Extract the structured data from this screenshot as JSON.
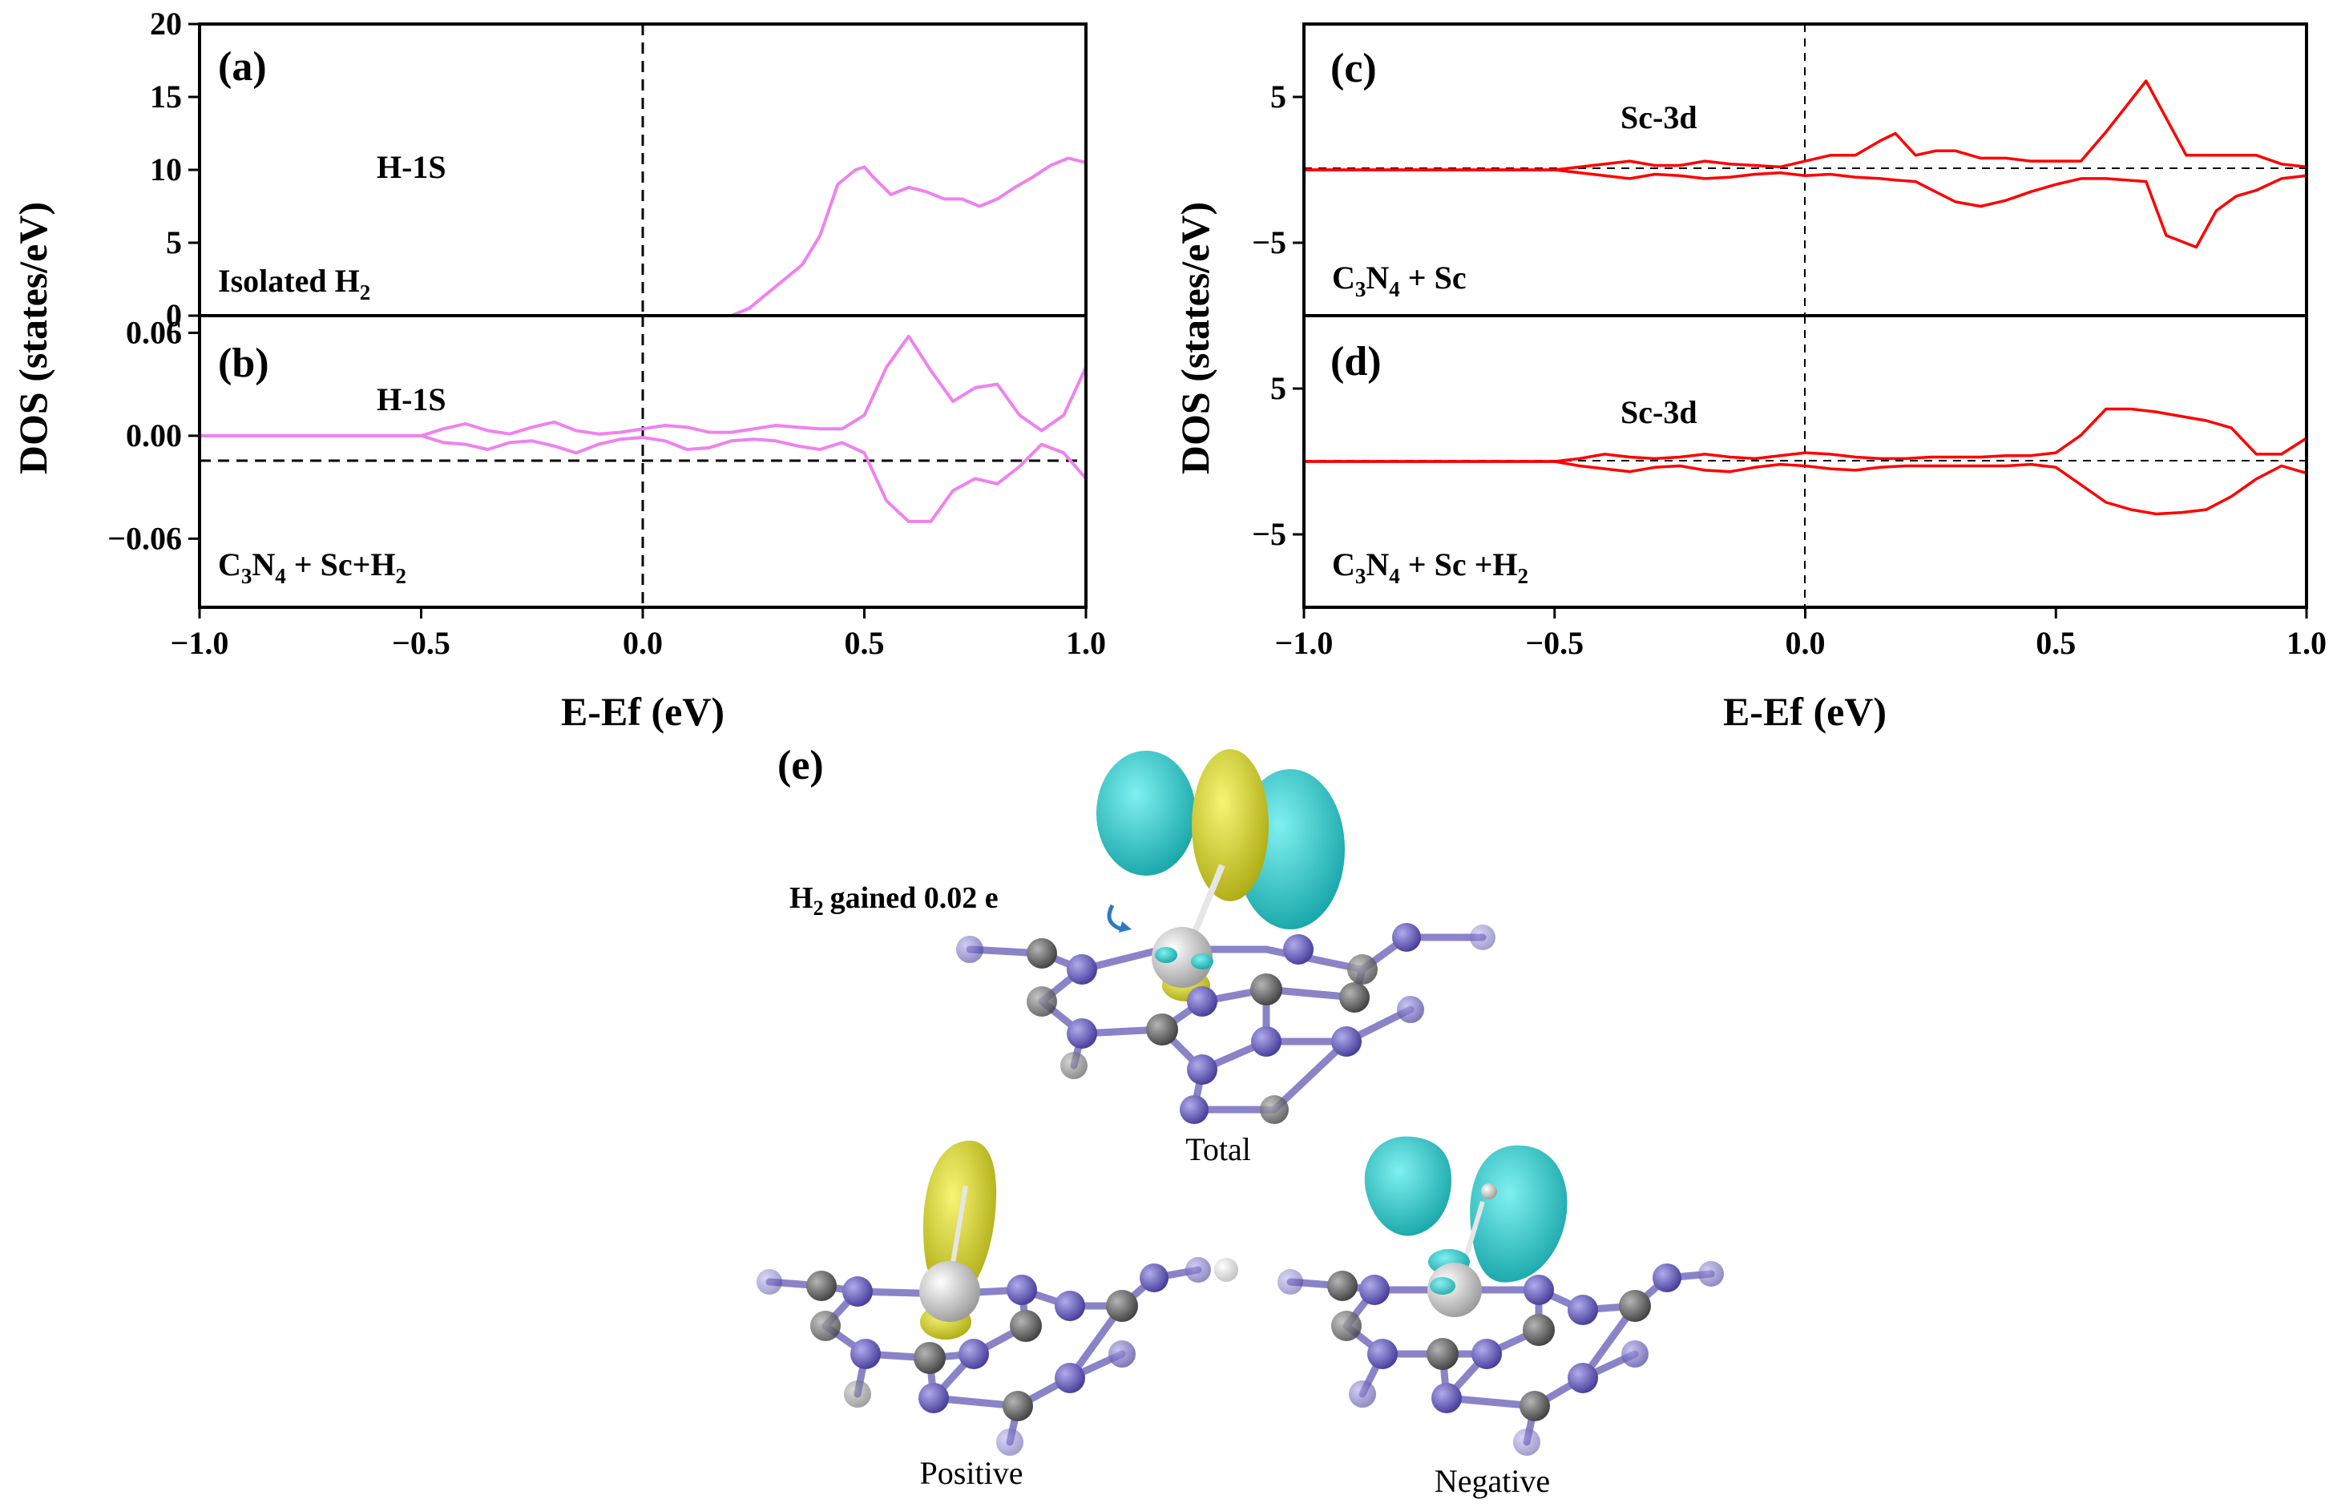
{
  "panels": {
    "e_label": "(e)",
    "charge_text": "gained 0.02 e",
    "charge_species": "H",
    "charge_sub": "2",
    "captions": [
      "Total",
      "Positive",
      "Negative"
    ]
  },
  "colors": {
    "h1s": "#ee82ee",
    "sc3d": "#ff0000",
    "isosurface_positive": "#e3e21a",
    "isosurface_negative": "#19d3d6",
    "atom_c": "#6e6e6e",
    "atom_n": "#6d63c9",
    "atom_sc": "#d8d8d8"
  },
  "chart_data": [
    {
      "id": "a",
      "type": "line",
      "panel_label": "(a)",
      "series_label": "H-1S",
      "system_label": {
        "text": "Isolated H",
        "sub": "2"
      },
      "xlim": [
        -1.0,
        1.0
      ],
      "ylim": [
        0,
        20
      ],
      "yticks": [
        0,
        5,
        10,
        15,
        20
      ],
      "ytick_labels": [
        "0",
        "5",
        "10",
        "15",
        "20"
      ],
      "vline_x": 0,
      "series": [
        {
          "x": [
            -1.0,
            0.2,
            0.24,
            0.28,
            0.32,
            0.36,
            0.4,
            0.44,
            0.48,
            0.5,
            0.52,
            0.56,
            0.6,
            0.64,
            0.68,
            0.72,
            0.76,
            0.8,
            0.84,
            0.88,
            0.92,
            0.96,
            1.0
          ],
          "y": [
            0,
            0,
            0.5,
            1.5,
            2.5,
            3.5,
            5.5,
            9.0,
            10.0,
            10.2,
            9.5,
            8.3,
            8.8,
            8.5,
            8.0,
            8.0,
            7.5,
            8.0,
            8.8,
            9.5,
            10.3,
            10.8,
            10.5
          ]
        }
      ]
    },
    {
      "id": "b",
      "type": "line",
      "panel_label": "(b)",
      "series_label": "H-1S",
      "system_label": {
        "parts": [
          [
            "C",
            ""
          ],
          [
            "3",
            "sub"
          ],
          [
            "N",
            ""
          ],
          [
            "4",
            "sub"
          ],
          [
            " + Sc+H",
            ""
          ],
          [
            "2",
            "sub"
          ]
        ]
      },
      "xlim": [
        -1.0,
        1.0
      ],
      "ylim": [
        -0.1,
        0.07
      ],
      "yticks": [
        -0.06,
        0.0,
        0.06
      ],
      "ytick_labels": [
        "−0.06",
        "0.00",
        "0.06"
      ],
      "xticks": [
        -1.0,
        -0.5,
        0.0,
        0.5,
        1.0
      ],
      "xtick_labels": [
        "−1.0",
        "−0.5",
        "0.0",
        "0.5",
        "1.0"
      ],
      "xlabel": "E-Ef (eV)",
      "vline_x": 0,
      "hline_y": 0,
      "series": [
        {
          "x": [
            -1.0,
            -0.55,
            -0.5,
            -0.45,
            -0.4,
            -0.35,
            -0.3,
            -0.25,
            -0.2,
            -0.15,
            -0.1,
            -0.05,
            0.0,
            0.05,
            0.1,
            0.15,
            0.2,
            0.25,
            0.3,
            0.35,
            0.4,
            0.45,
            0.5,
            0.55,
            0.6,
            0.65,
            0.7,
            0.75,
            0.8,
            0.85,
            0.9,
            0.95,
            1.0
          ],
          "y": [
            0.0,
            0.0,
            0.0,
            0.004,
            0.007,
            0.003,
            0.001,
            0.005,
            0.008,
            0.003,
            0.001,
            0.002,
            0.004,
            0.006,
            0.005,
            0.002,
            0.002,
            0.004,
            0.006,
            0.005,
            0.004,
            0.004,
            0.012,
            0.04,
            0.058,
            0.038,
            0.02,
            0.028,
            0.03,
            0.012,
            0.003,
            0.012,
            0.04
          ]
        },
        {
          "x": [
            -1.0,
            -0.55,
            -0.5,
            -0.45,
            -0.4,
            -0.35,
            -0.3,
            -0.25,
            -0.2,
            -0.15,
            -0.1,
            -0.05,
            0.0,
            0.05,
            0.1,
            0.15,
            0.2,
            0.25,
            0.3,
            0.35,
            0.4,
            0.45,
            0.5,
            0.55,
            0.6,
            0.65,
            0.7,
            0.75,
            0.8,
            0.85,
            0.9,
            0.95,
            1.0
          ],
          "y": [
            0.0,
            0.0,
            0.0,
            -0.004,
            -0.005,
            -0.008,
            -0.004,
            -0.003,
            -0.006,
            -0.01,
            -0.005,
            -0.002,
            -0.001,
            -0.003,
            -0.008,
            -0.007,
            -0.003,
            -0.002,
            -0.003,
            -0.006,
            -0.008,
            -0.004,
            -0.01,
            -0.038,
            -0.05,
            -0.05,
            -0.032,
            -0.025,
            -0.028,
            -0.018,
            -0.005,
            -0.01,
            -0.025
          ]
        }
      ]
    },
    {
      "id": "c",
      "type": "line",
      "panel_label": "(c)",
      "series_label": "Sc-3d",
      "system_label": {
        "parts": [
          [
            "C",
            ""
          ],
          [
            "3",
            "sub"
          ],
          [
            "N",
            ""
          ],
          [
            "4",
            "sub"
          ],
          [
            " + Sc",
            ""
          ]
        ]
      },
      "xlim": [
        -1.0,
        1.0
      ],
      "ylim": [
        -10,
        10
      ],
      "yticks": [
        -5,
        5
      ],
      "ytick_labels": [
        "−5",
        "5"
      ],
      "vline_x": 0,
      "hline_y": 0,
      "series": [
        {
          "x": [
            -1.0,
            -0.55,
            -0.5,
            -0.45,
            -0.4,
            -0.35,
            -0.3,
            -0.25,
            -0.2,
            -0.15,
            -0.1,
            -0.05,
            0.0,
            0.05,
            0.1,
            0.15,
            0.18,
            0.22,
            0.26,
            0.3,
            0.35,
            0.4,
            0.45,
            0.5,
            0.55,
            0.6,
            0.68,
            0.76,
            0.8,
            0.85,
            0.9,
            0.95,
            1.0
          ],
          "y": [
            0.0,
            0.0,
            0.0,
            0.2,
            0.4,
            0.6,
            0.3,
            0.3,
            0.6,
            0.4,
            0.3,
            0.2,
            0.6,
            1.0,
            1.0,
            2.0,
            2.5,
            1.0,
            1.3,
            1.3,
            0.8,
            0.8,
            0.6,
            0.6,
            0.6,
            2.6,
            6.1,
            1.0,
            1.0,
            1.0,
            1.0,
            0.4,
            0.2
          ]
        },
        {
          "x": [
            -1.0,
            -0.55,
            -0.5,
            -0.45,
            -0.4,
            -0.35,
            -0.3,
            -0.25,
            -0.2,
            -0.15,
            -0.1,
            -0.05,
            0.0,
            0.05,
            0.1,
            0.15,
            0.18,
            0.22,
            0.26,
            0.3,
            0.35,
            0.4,
            0.45,
            0.5,
            0.55,
            0.6,
            0.68,
            0.72,
            0.78,
            0.82,
            0.86,
            0.9,
            0.95,
            1.0
          ],
          "y": [
            0.0,
            0.0,
            0.0,
            -0.2,
            -0.4,
            -0.6,
            -0.3,
            -0.4,
            -0.6,
            -0.5,
            -0.3,
            -0.2,
            -0.4,
            -0.3,
            -0.5,
            -0.6,
            -0.7,
            -0.8,
            -1.5,
            -2.2,
            -2.5,
            -2.1,
            -1.5,
            -1.0,
            -0.6,
            -0.6,
            -0.8,
            -4.5,
            -5.3,
            -2.8,
            -1.8,
            -1.4,
            -0.6,
            -0.4
          ]
        }
      ]
    },
    {
      "id": "d",
      "type": "line",
      "panel_label": "(d)",
      "series_label": "Sc-3d",
      "system_label": {
        "parts": [
          [
            "C",
            ""
          ],
          [
            "3",
            "sub"
          ],
          [
            "N",
            ""
          ],
          [
            "4",
            "sub"
          ],
          [
            " + Sc +H",
            ""
          ],
          [
            "2",
            "sub"
          ]
        ]
      },
      "xlim": [
        -1.0,
        1.0
      ],
      "ylim": [
        -10,
        10
      ],
      "yticks": [
        -5,
        5
      ],
      "ytick_labels": [
        "−5",
        "5"
      ],
      "xticks": [
        -1.0,
        -0.5,
        0.0,
        0.5,
        1.0
      ],
      "xtick_labels": [
        "−1.0",
        "−0.5",
        "0.0",
        "0.5",
        "1.0"
      ],
      "xlabel": "E-Ef (eV)",
      "vline_x": 0,
      "hline_y": 0,
      "series": [
        {
          "x": [
            -1.0,
            -0.55,
            -0.5,
            -0.45,
            -0.4,
            -0.35,
            -0.3,
            -0.25,
            -0.2,
            -0.15,
            -0.1,
            -0.05,
            0.0,
            0.05,
            0.1,
            0.15,
            0.2,
            0.25,
            0.3,
            0.35,
            0.4,
            0.45,
            0.5,
            0.55,
            0.6,
            0.65,
            0.7,
            0.75,
            0.8,
            0.85,
            0.9,
            0.95,
            1.0
          ],
          "y": [
            0.0,
            0.0,
            0.0,
            0.2,
            0.5,
            0.3,
            0.2,
            0.3,
            0.5,
            0.3,
            0.2,
            0.4,
            0.6,
            0.5,
            0.3,
            0.2,
            0.2,
            0.3,
            0.3,
            0.3,
            0.4,
            0.4,
            0.6,
            1.8,
            3.6,
            3.6,
            3.4,
            3.1,
            2.8,
            2.3,
            0.5,
            0.5,
            1.6
          ]
        },
        {
          "x": [
            -1.0,
            -0.55,
            -0.5,
            -0.45,
            -0.4,
            -0.35,
            -0.3,
            -0.25,
            -0.2,
            -0.15,
            -0.1,
            -0.05,
            0.0,
            0.05,
            0.1,
            0.15,
            0.2,
            0.25,
            0.3,
            0.35,
            0.4,
            0.45,
            0.5,
            0.55,
            0.6,
            0.65,
            0.7,
            0.75,
            0.8,
            0.85,
            0.9,
            0.95,
            1.0
          ],
          "y": [
            0.0,
            0.0,
            0.0,
            -0.3,
            -0.5,
            -0.7,
            -0.4,
            -0.3,
            -0.6,
            -0.7,
            -0.4,
            -0.2,
            -0.3,
            -0.5,
            -0.6,
            -0.4,
            -0.3,
            -0.3,
            -0.3,
            -0.3,
            -0.3,
            -0.2,
            -0.4,
            -1.6,
            -2.8,
            -3.3,
            -3.6,
            -3.5,
            -3.3,
            -2.4,
            -1.2,
            -0.3,
            -0.8
          ]
        }
      ]
    }
  ],
  "y_axis_title_left": "DOS (states/eV)",
  "y_axis_title_right": "DOS (states/eV)"
}
